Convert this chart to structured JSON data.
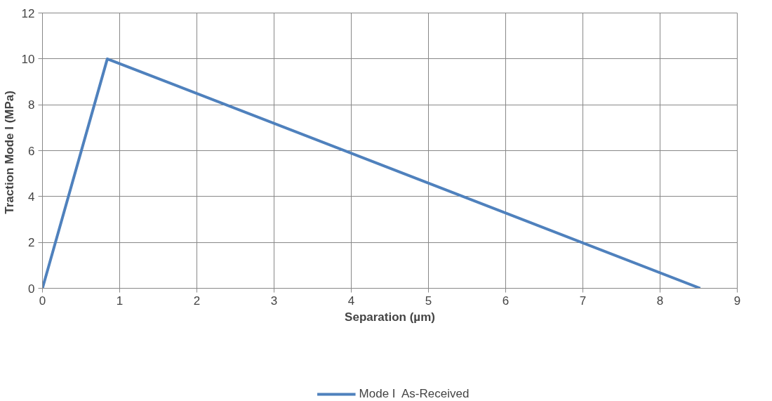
{
  "chart_data": {
    "type": "line",
    "xlabel": "Separation (µm)",
    "ylabel": "Traction  Mode I (MPa)",
    "series": [
      {
        "name": "Mode I  As-Received",
        "color": "#4f81bd",
        "x": [
          0,
          0.84,
          8.52
        ],
        "values": [
          0,
          10,
          0
        ]
      }
    ],
    "xlim": [
      0,
      9
    ],
    "ylim": [
      0,
      12
    ],
    "xticks": [
      0,
      1,
      2,
      3,
      4,
      5,
      6,
      7,
      8,
      9
    ],
    "yticks": [
      0,
      2,
      4,
      6,
      8,
      10,
      12
    ],
    "grid": true,
    "legend": "bottom",
    "marker": "none",
    "line_style": "solid"
  }
}
